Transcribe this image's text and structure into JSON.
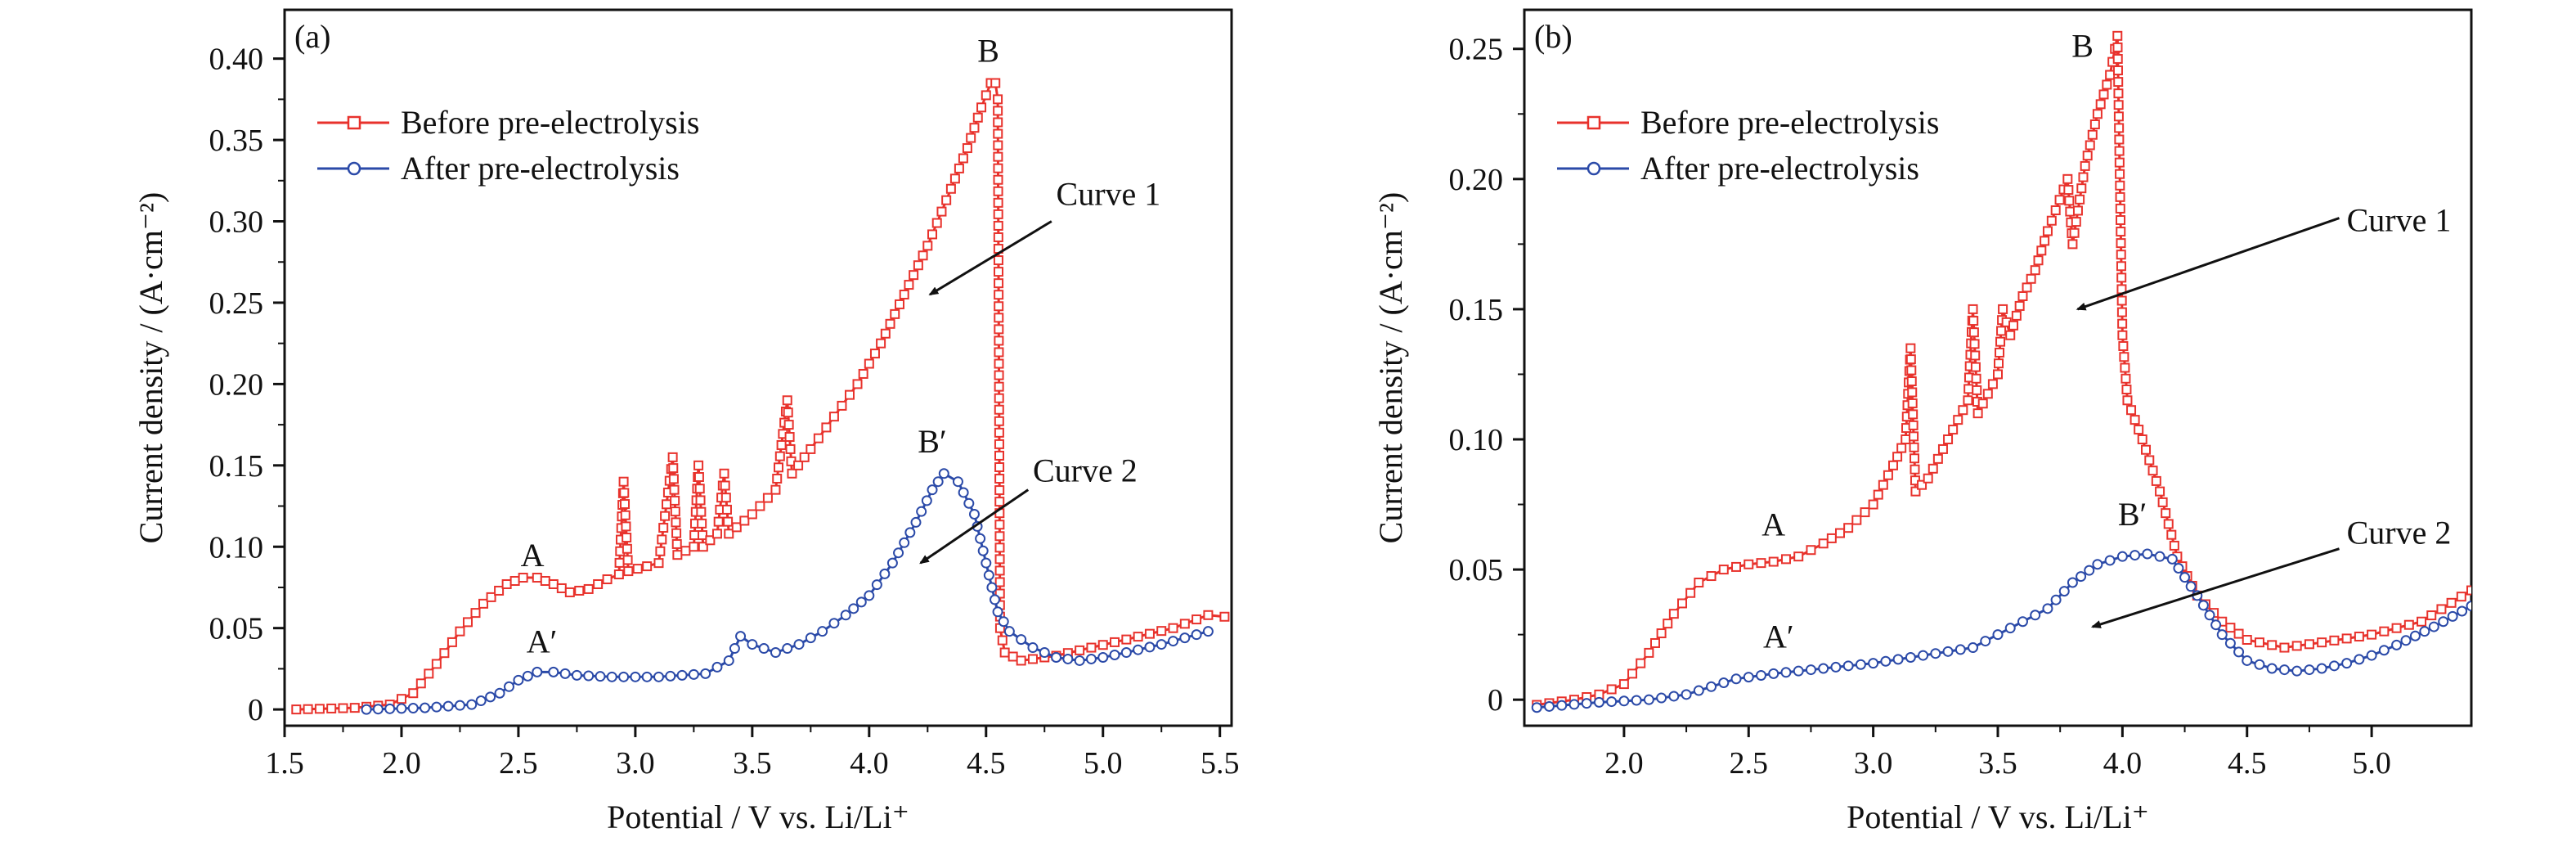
{
  "chart_data": [
    {
      "type": "line",
      "panel_label": "(a)",
      "xlabel": "Potential / V vs. Li/Li⁺",
      "ylabel": "Current density / (A·cm⁻²)",
      "xlim": [
        1.5,
        5.55
      ],
      "ylim": [
        -0.01,
        0.43
      ],
      "xticks": [
        1.5,
        2.0,
        2.5,
        3.0,
        3.5,
        4.0,
        4.5,
        5.0,
        5.5
      ],
      "xtick_labels": [
        "1.5",
        "2.0",
        "2.5",
        "3.0",
        "3.5",
        "4.0",
        "4.5",
        "5.0",
        "5.5"
      ],
      "yticks": [
        0,
        0.05,
        0.1,
        0.15,
        0.2,
        0.25,
        0.3,
        0.35,
        0.4
      ],
      "ytick_labels": [
        "0",
        "0.05",
        "0.10",
        "0.15",
        "0.20",
        "0.25",
        "0.30",
        "0.35",
        "0.40"
      ],
      "grid": false,
      "legend_position": "top-left",
      "series": [
        {
          "name": "Before pre-electrolysis",
          "color": "#e8322c",
          "marker": "square",
          "points": [
            [
              1.55,
              0.0
            ],
            [
              1.8,
              0.001
            ],
            [
              1.95,
              0.003
            ],
            [
              2.05,
              0.01
            ],
            [
              2.15,
              0.028
            ],
            [
              2.25,
              0.048
            ],
            [
              2.35,
              0.065
            ],
            [
              2.45,
              0.077
            ],
            [
              2.52,
              0.081
            ],
            [
              2.58,
              0.081
            ],
            [
              2.65,
              0.077
            ],
            [
              2.72,
              0.072
            ],
            [
              2.8,
              0.074
            ],
            [
              2.88,
              0.08
            ],
            [
              2.93,
              0.083
            ],
            [
              2.95,
              0.14
            ],
            [
              2.97,
              0.085
            ],
            [
              3.05,
              0.088
            ],
            [
              3.1,
              0.09
            ],
            [
              3.16,
              0.155
            ],
            [
              3.18,
              0.095
            ],
            [
              3.25,
              0.1
            ],
            [
              3.27,
              0.15
            ],
            [
              3.29,
              0.1
            ],
            [
              3.35,
              0.108
            ],
            [
              3.38,
              0.145
            ],
            [
              3.4,
              0.108
            ],
            [
              3.5,
              0.12
            ],
            [
              3.6,
              0.135
            ],
            [
              3.65,
              0.19
            ],
            [
              3.67,
              0.145
            ],
            [
              3.75,
              0.16
            ],
            [
              3.85,
              0.18
            ],
            [
              3.95,
              0.2
            ],
            [
              4.05,
              0.225
            ],
            [
              4.15,
              0.255
            ],
            [
              4.25,
              0.285
            ],
            [
              4.35,
              0.32
            ],
            [
              4.42,
              0.345
            ],
            [
              4.48,
              0.37
            ],
            [
              4.52,
              0.385
            ],
            [
              4.54,
              0.385
            ],
            [
              4.55,
              0.375
            ],
            [
              4.56,
              0.05
            ],
            [
              4.58,
              0.035
            ],
            [
              4.65,
              0.03
            ],
            [
              4.8,
              0.033
            ],
            [
              4.95,
              0.038
            ],
            [
              5.1,
              0.043
            ],
            [
              5.3,
              0.05
            ],
            [
              5.45,
              0.058
            ],
            [
              5.52,
              0.057
            ]
          ]
        },
        {
          "name": "After pre-electrolysis",
          "color": "#2b4aa8",
          "marker": "circle",
          "points": [
            [
              1.85,
              0.0
            ],
            [
              2.1,
              0.001
            ],
            [
              2.3,
              0.003
            ],
            [
              2.42,
              0.01
            ],
            [
              2.5,
              0.018
            ],
            [
              2.58,
              0.023
            ],
            [
              2.65,
              0.023
            ],
            [
              2.75,
              0.021
            ],
            [
              2.9,
              0.02
            ],
            [
              3.1,
              0.02
            ],
            [
              3.3,
              0.022
            ],
            [
              3.4,
              0.03
            ],
            [
              3.45,
              0.045
            ],
            [
              3.5,
              0.04
            ],
            [
              3.6,
              0.035
            ],
            [
              3.7,
              0.04
            ],
            [
              3.8,
              0.048
            ],
            [
              3.9,
              0.058
            ],
            [
              4.0,
              0.07
            ],
            [
              4.1,
              0.09
            ],
            [
              4.2,
              0.115
            ],
            [
              4.27,
              0.135
            ],
            [
              4.32,
              0.145
            ],
            [
              4.38,
              0.14
            ],
            [
              4.45,
              0.12
            ],
            [
              4.5,
              0.09
            ],
            [
              4.55,
              0.06
            ],
            [
              4.6,
              0.048
            ],
            [
              4.7,
              0.038
            ],
            [
              4.8,
              0.032
            ],
            [
              4.9,
              0.03
            ],
            [
              5.0,
              0.032
            ],
            [
              5.1,
              0.035
            ],
            [
              5.25,
              0.04
            ],
            [
              5.4,
              0.046
            ],
            [
              5.45,
              0.048
            ]
          ]
        }
      ],
      "annotations": [
        {
          "text": "A",
          "x": 2.56,
          "y": 0.088
        },
        {
          "text": "B",
          "x": 4.51,
          "y": 0.398
        },
        {
          "text": "A′",
          "x": 2.6,
          "y": 0.035
        },
        {
          "text": "B′",
          "x": 4.27,
          "y": 0.158
        },
        {
          "text": "Curve 1",
          "x": 4.8,
          "y": 0.31
        },
        {
          "text": "Curve 2",
          "x": 4.7,
          "y": 0.14
        }
      ]
    },
    {
      "type": "line",
      "panel_label": "(b)",
      "xlabel": "Potential / V vs. Li/Li⁺",
      "ylabel": "Current density / (A·cm⁻²)",
      "xlim": [
        1.6,
        5.4
      ],
      "ylim": [
        -0.01,
        0.265
      ],
      "xticks": [
        2.0,
        2.5,
        3.0,
        3.5,
        4.0,
        4.5,
        5.0
      ],
      "xtick_labels": [
        "2.0",
        "2.5",
        "3.0",
        "3.5",
        "4.0",
        "4.5",
        "5.0"
      ],
      "yticks": [
        0,
        0.05,
        0.1,
        0.15,
        0.2,
        0.25
      ],
      "ytick_labels": [
        "0",
        "0.05",
        "0.10",
        "0.15",
        "0.20",
        "0.25"
      ],
      "grid": false,
      "legend_position": "top-left",
      "series": [
        {
          "name": "Before pre-electrolysis",
          "color": "#e8322c",
          "marker": "square",
          "points": [
            [
              1.65,
              -0.002
            ],
            [
              1.8,
              0.0
            ],
            [
              1.9,
              0.002
            ],
            [
              2.0,
              0.006
            ],
            [
              2.1,
              0.018
            ],
            [
              2.2,
              0.033
            ],
            [
              2.3,
              0.045
            ],
            [
              2.4,
              0.05
            ],
            [
              2.5,
              0.052
            ],
            [
              2.6,
              0.053
            ],
            [
              2.7,
              0.055
            ],
            [
              2.8,
              0.06
            ],
            [
              2.9,
              0.066
            ],
            [
              3.0,
              0.075
            ],
            [
              3.08,
              0.09
            ],
            [
              3.13,
              0.1
            ],
            [
              3.15,
              0.135
            ],
            [
              3.17,
              0.08
            ],
            [
              3.22,
              0.085
            ],
            [
              3.3,
              0.1
            ],
            [
              3.38,
              0.115
            ],
            [
              3.4,
              0.15
            ],
            [
              3.42,
              0.11
            ],
            [
              3.5,
              0.125
            ],
            [
              3.52,
              0.15
            ],
            [
              3.55,
              0.14
            ],
            [
              3.6,
              0.155
            ],
            [
              3.65,
              0.165
            ],
            [
              3.7,
              0.18
            ],
            [
              3.78,
              0.2
            ],
            [
              3.8,
              0.175
            ],
            [
              3.85,
              0.205
            ],
            [
              3.9,
              0.225
            ],
            [
              3.95,
              0.24
            ],
            [
              3.98,
              0.255
            ],
            [
              4.0,
              0.14
            ],
            [
              4.02,
              0.115
            ],
            [
              4.08,
              0.1
            ],
            [
              4.15,
              0.08
            ],
            [
              4.22,
              0.055
            ],
            [
              4.3,
              0.04
            ],
            [
              4.4,
              0.03
            ],
            [
              4.5,
              0.023
            ],
            [
              4.65,
              0.02
            ],
            [
              4.8,
              0.022
            ],
            [
              5.0,
              0.025
            ],
            [
              5.2,
              0.03
            ],
            [
              5.4,
              0.042
            ]
          ]
        },
        {
          "name": "After pre-electrolysis",
          "color": "#2b4aa8",
          "marker": "circle",
          "points": [
            [
              1.65,
              -0.003
            ],
            [
              1.9,
              -0.001
            ],
            [
              2.1,
              0.0
            ],
            [
              2.25,
              0.002
            ],
            [
              2.35,
              0.005
            ],
            [
              2.45,
              0.008
            ],
            [
              2.6,
              0.01
            ],
            [
              2.8,
              0.012
            ],
            [
              3.0,
              0.014
            ],
            [
              3.2,
              0.017
            ],
            [
              3.4,
              0.02
            ],
            [
              3.5,
              0.025
            ],
            [
              3.6,
              0.03
            ],
            [
              3.7,
              0.035
            ],
            [
              3.8,
              0.045
            ],
            [
              3.9,
              0.052
            ],
            [
              4.0,
              0.055
            ],
            [
              4.1,
              0.056
            ],
            [
              4.2,
              0.054
            ],
            [
              4.3,
              0.04
            ],
            [
              4.4,
              0.025
            ],
            [
              4.5,
              0.015
            ],
            [
              4.6,
              0.012
            ],
            [
              4.7,
              0.011
            ],
            [
              4.8,
              0.012
            ],
            [
              4.9,
              0.014
            ],
            [
              5.0,
              0.017
            ],
            [
              5.1,
              0.021
            ],
            [
              5.25,
              0.028
            ],
            [
              5.4,
              0.036
            ]
          ]
        }
      ],
      "annotations": [
        {
          "text": "A",
          "x": 2.6,
          "y": 0.063
        },
        {
          "text": "B",
          "x": 3.84,
          "y": 0.247
        },
        {
          "text": "A′",
          "x": 2.62,
          "y": 0.02
        },
        {
          "text": "B′",
          "x": 4.04,
          "y": 0.067
        },
        {
          "text": "Curve 1",
          "x": 4.9,
          "y": 0.18
        },
        {
          "text": "Curve 2",
          "x": 4.9,
          "y": 0.06
        }
      ]
    }
  ]
}
